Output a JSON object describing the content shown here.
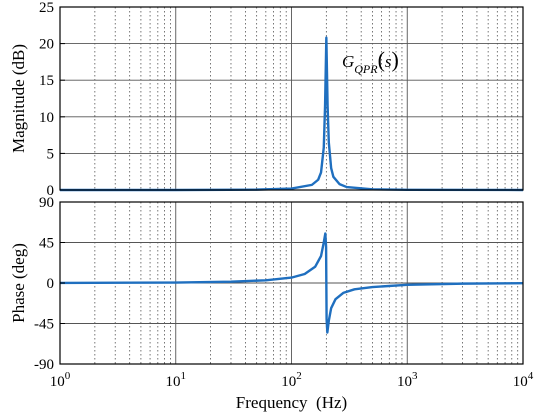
{
  "chart_data": [
    {
      "type": "line",
      "xscale": "log",
      "xlim": [
        1,
        10000
      ],
      "ylim": [
        0,
        25
      ],
      "ylabel": "Magnitude (dB)",
      "xlabel": "",
      "grid": true,
      "x_ticks": [
        1,
        10,
        100,
        1000,
        10000
      ],
      "y_ticks": [
        "0",
        "5",
        "10",
        "15",
        "20",
        "25"
      ],
      "y_tick_values": [
        0,
        5,
        10,
        15,
        20,
        25
      ],
      "annotation": {
        "main": "G",
        "subscript": "QPR",
        "argument": "s"
      },
      "series": [
        {
          "color": "#1f6fbf",
          "x": [
            1,
            10,
            50,
            100,
            150,
            170,
            180,
            190,
            195,
            200,
            205,
            210,
            220,
            230,
            260,
            300,
            500,
            1000,
            10000
          ],
          "y": [
            0.0,
            0.0,
            0.05,
            0.2,
            0.7,
            1.4,
            2.4,
            5.8,
            11.5,
            20.8,
            11.5,
            6.5,
            3.0,
            1.8,
            0.8,
            0.4,
            0.1,
            0.02,
            0.0
          ]
        }
      ]
    },
    {
      "type": "line",
      "xscale": "log",
      "xlim": [
        1,
        10000
      ],
      "ylim": [
        -90,
        90
      ],
      "ylabel": "Phase (deg)",
      "xlabel": "Frequency  (Hz)",
      "grid": true,
      "x_ticks": [
        1,
        10,
        100,
        1000,
        10000
      ],
      "y_ticks": [
        "90",
        "45",
        "0",
        "-45",
        "-90"
      ],
      "y_tick_values": [
        90,
        45,
        0,
        -45,
        -90
      ],
      "series": [
        {
          "color": "#1f6fbf",
          "x": [
            1,
            10,
            30,
            60,
            100,
            130,
            160,
            180,
            190,
            196,
            199,
            200,
            201,
            204,
            210,
            220,
            240,
            280,
            350,
            500,
            1000,
            3000,
            10000
          ],
          "y": [
            0.1,
            0.5,
            1.5,
            3.0,
            6.0,
            10.0,
            18.0,
            30.0,
            45.0,
            55.0,
            40.0,
            0.0,
            -40.0,
            -55.0,
            -42.0,
            -28.0,
            -18.0,
            -11.0,
            -7.0,
            -4.5,
            -2.0,
            -0.7,
            -0.2
          ]
        }
      ]
    }
  ]
}
